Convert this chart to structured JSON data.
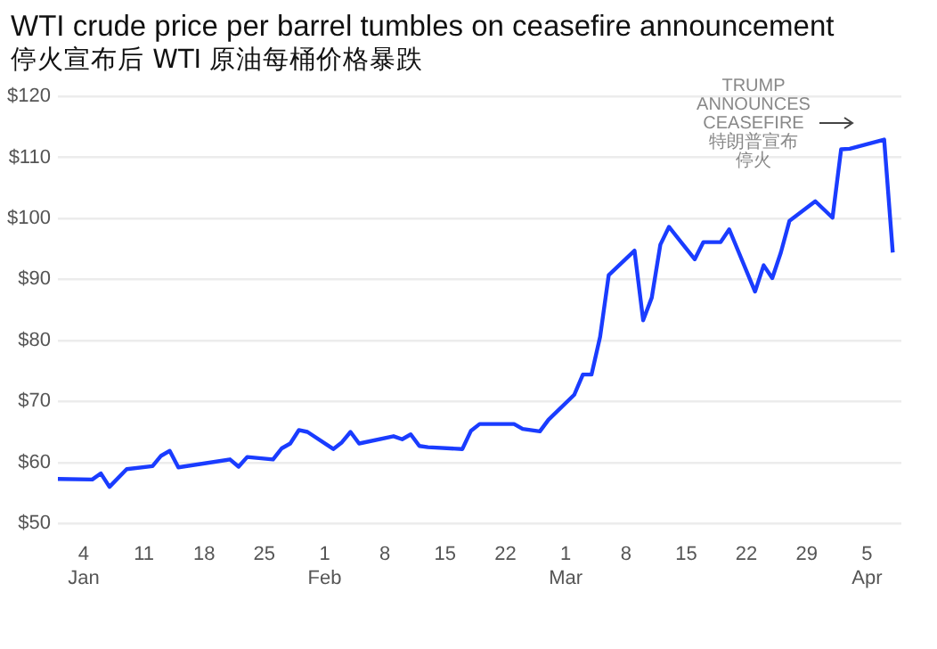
{
  "chart_data": {
    "type": "line",
    "title": "WTI crude price per barrel tumbles on ceasefire announcement",
    "subtitle": "停火宣布后 WTI 原油每桶价格暴跌",
    "x": [
      "--01-01",
      "--01-05",
      "--01-06",
      "--01-07",
      "--01-09",
      "--01-12",
      "--01-13",
      "--01-14",
      "--01-15",
      "--01-21",
      "--01-22",
      "--01-23",
      "--01-26",
      "--01-27",
      "--01-28",
      "--01-29",
      "--01-30",
      "--02-02",
      "--02-03",
      "--02-04",
      "--02-05",
      "--02-09",
      "--02-10",
      "--02-11",
      "--02-12",
      "--02-13",
      "--02-17",
      "--02-18",
      "--02-19",
      "--02-23",
      "--02-24",
      "--02-26",
      "--02-27",
      "--03-02",
      "--03-03",
      "--03-04",
      "--03-05",
      "--03-06",
      "--03-09",
      "--03-10",
      "--03-11",
      "--03-12",
      "--03-13",
      "--03-16",
      "--03-17",
      "--03-19",
      "--03-20",
      "--03-23",
      "--03-24",
      "--03-25",
      "--03-26",
      "--03-27",
      "--03-30",
      "--04-01",
      "--04-02",
      "--04-03",
      "--04-07",
      "--04-08"
    ],
    "series": [
      {
        "color": "#1a3cff",
        "values": [
          57.3,
          57.2,
          58.2,
          56.0,
          58.9,
          59.4,
          61.1,
          61.9,
          59.2,
          60.5,
          59.3,
          60.9,
          60.5,
          62.3,
          63.1,
          65.3,
          65.0,
          62.2,
          63.3,
          65.0,
          63.1,
          64.3,
          63.8,
          64.6,
          62.7,
          62.5,
          62.2,
          65.2,
          66.3,
          66.3,
          65.5,
          65.1,
          67.0,
          71.1,
          74.4,
          74.4,
          80.6,
          90.7,
          94.7,
          83.3,
          87.0,
          95.7,
          98.6,
          93.3,
          96.1,
          96.1,
          98.2,
          88.0,
          92.3,
          90.2,
          94.4,
          99.6,
          102.8,
          100.1,
          111.3,
          111.4,
          112.9,
          94.4
        ]
      }
    ],
    "xlim": [
      "--01-01",
      "--04-09"
    ],
    "xticks": [
      {
        "value": "--01-04",
        "label": "4\nJan"
      },
      {
        "value": "--01-11",
        "label": "11"
      },
      {
        "value": "--01-18",
        "label": "18"
      },
      {
        "value": "--01-25",
        "label": "25"
      },
      {
        "value": "--02-01",
        "label": "1\nFeb"
      },
      {
        "value": "--02-08",
        "label": "8"
      },
      {
        "value": "--02-15",
        "label": "15"
      },
      {
        "value": "--02-22",
        "label": "22"
      },
      {
        "value": "--03-01",
        "label": "1\nMar"
      },
      {
        "value": "--03-08",
        "label": "8"
      },
      {
        "value": "--03-15",
        "label": "15"
      },
      {
        "value": "--03-22",
        "label": "22"
      },
      {
        "value": "--03-29",
        "label": "29"
      },
      {
        "value": "--04-05",
        "label": "5\nApr"
      }
    ],
    "ylim": [
      50,
      120
    ],
    "yticks": [
      {
        "value": 50,
        "label": "$50"
      },
      {
        "value": 60,
        "label": "$60"
      },
      {
        "value": 70,
        "label": "$70"
      },
      {
        "value": 80,
        "label": "$80"
      },
      {
        "value": 90,
        "label": "$90"
      },
      {
        "value": 100,
        "label": "$100"
      },
      {
        "value": 110,
        "label": "$110"
      },
      {
        "value": 120,
        "label": "$120"
      }
    ],
    "grid": "y",
    "legend": false,
    "marker": "none",
    "line_style": "solid",
    "annotations": [
      "TRUMP ANNOUNCES CEASEFIRE",
      "特朗普宣布停火"
    ]
  }
}
